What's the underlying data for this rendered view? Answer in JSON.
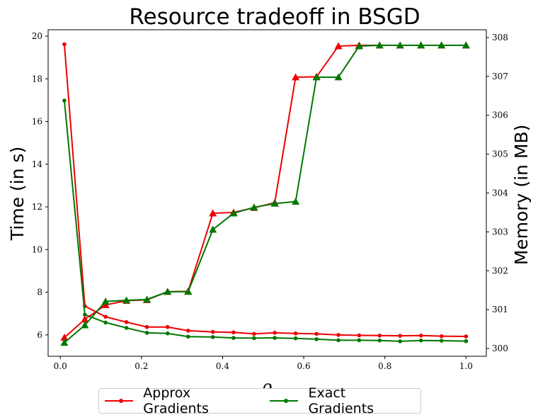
{
  "chart_data": {
    "type": "line",
    "title": "Resource tradeoff in BSGD",
    "xlabel": "ρ",
    "ylabel_left": "Time (in s)",
    "ylabel_right": "Memory (in MB)",
    "xlim": [
      -0.03,
      1.05
    ],
    "ylim_left": [
      5.0,
      20.3
    ],
    "ylim_right": [
      299.8,
      308.2
    ],
    "x_ticks": [
      "0.0",
      "0.2",
      "0.4",
      "0.6",
      "0.8",
      "1.0"
    ],
    "y_ticks_left": [
      "6",
      "8",
      "10",
      "12",
      "14",
      "16",
      "18",
      "20"
    ],
    "y_ticks_right": [
      "300",
      "301",
      "302",
      "303",
      "304",
      "305",
      "306",
      "307",
      "308"
    ],
    "x": [
      0.01,
      0.0605,
      0.1115,
      0.163,
      0.2135,
      0.2645,
      0.315,
      0.376,
      0.427,
      0.4775,
      0.5285,
      0.58,
      0.6315,
      0.6855,
      0.7365,
      0.787,
      0.8375,
      0.889,
      0.9395,
      1.0
    ],
    "series": [
      {
        "name": "Approx Gradients",
        "axis": "left",
        "marker": "circle",
        "color": "#ee0000",
        "values": [
          19.62,
          7.35,
          6.85,
          6.6,
          6.37,
          6.37,
          6.2,
          6.14,
          6.12,
          6.05,
          6.1,
          6.07,
          6.05,
          6.0,
          5.98,
          5.97,
          5.96,
          5.97,
          5.94,
          5.93
        ]
      },
      {
        "name": "Exact Gradients",
        "axis": "left",
        "marker": "circle",
        "color": "#007700",
        "values": [
          16.98,
          6.95,
          6.58,
          6.33,
          6.1,
          6.07,
          5.92,
          5.9,
          5.86,
          5.85,
          5.86,
          5.84,
          5.8,
          5.75,
          5.75,
          5.74,
          5.7,
          5.74,
          5.73,
          5.71
        ]
      },
      {
        "name": "Approx Gradients",
        "axis": "right",
        "marker": "triangle",
        "color": "#ee0000",
        "values": [
          300.28,
          300.75,
          301.12,
          301.23,
          301.25,
          301.46,
          301.47,
          303.48,
          303.5,
          303.62,
          303.75,
          306.98,
          306.99,
          307.78,
          307.8,
          307.8,
          307.8,
          307.8,
          307.8,
          307.8
        ]
      },
      {
        "name": "Exact Gradients",
        "axis": "right",
        "marker": "triangle",
        "color": "#007700",
        "values": [
          300.15,
          300.6,
          301.21,
          301.24,
          301.26,
          301.46,
          301.46,
          303.06,
          303.48,
          303.63,
          303.73,
          303.78,
          306.98,
          306.98,
          307.78,
          307.8,
          307.8,
          307.8,
          307.8,
          307.8
        ]
      }
    ],
    "legend": {
      "placement": "bottom-center",
      "entries": [
        {
          "label": "Approx Gradients",
          "color": "#ee0000"
        },
        {
          "label": "Exact Gradients",
          "color": "#007700"
        }
      ]
    },
    "grid": false
  }
}
